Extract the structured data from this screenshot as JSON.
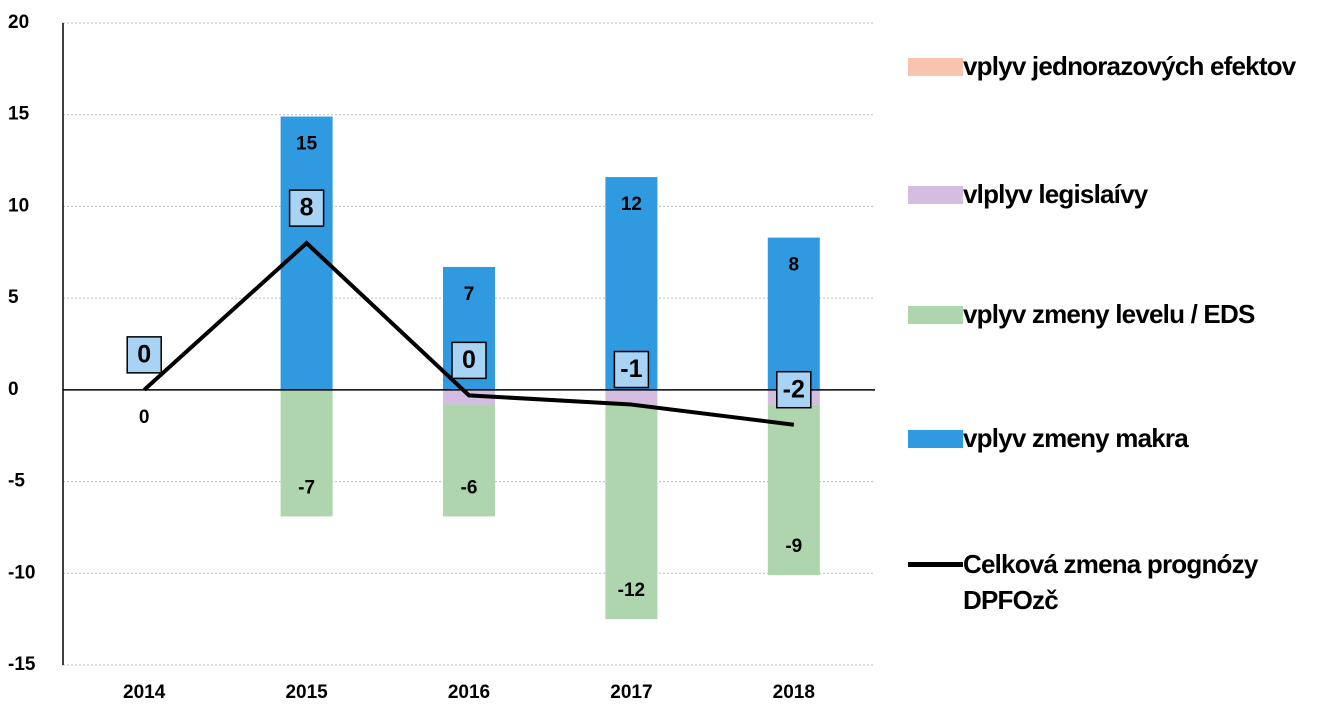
{
  "chart_data": {
    "type": "bar",
    "categories": [
      "2014",
      "2015",
      "2016",
      "2017",
      "2018"
    ],
    "ylim": [
      -15,
      20
    ],
    "yticks": [
      -15,
      -10,
      -5,
      0,
      5,
      10,
      15,
      20
    ],
    "grid": true,
    "legend": "right",
    "series": [
      {
        "name": "vplyv jednorazových efektov",
        "color": "#f7c4b0",
        "values": [
          0,
          0,
          0,
          0,
          0
        ]
      },
      {
        "name": "vlplyv legislaívy",
        "color": "#d4bde0",
        "values": [
          0,
          0,
          -0.8,
          -0.8,
          -0.8
        ]
      },
      {
        "name": "vplyv zmeny levelu / EDS",
        "color": "#aed5ae",
        "values": [
          0,
          -6.9,
          -6.1,
          -11.7,
          -9.3
        ],
        "value_labels": [
          "0",
          "-7",
          "-6",
          "-12",
          "-9"
        ]
      },
      {
        "name": "vplyv zmeny makra",
        "color": "#2f9ae0",
        "values": [
          0,
          14.9,
          6.7,
          11.6,
          8.3
        ],
        "value_labels": [
          null,
          "15",
          "7",
          "12",
          "8"
        ]
      },
      {
        "name": "Celková zmena prognózy DPFOzč",
        "type": "line",
        "color": "#000000",
        "values": [
          0,
          8,
          -0.3,
          -0.8,
          -1.9
        ],
        "value_labels": [
          "0",
          "8",
          "0",
          "-1",
          "-2"
        ]
      }
    ]
  }
}
